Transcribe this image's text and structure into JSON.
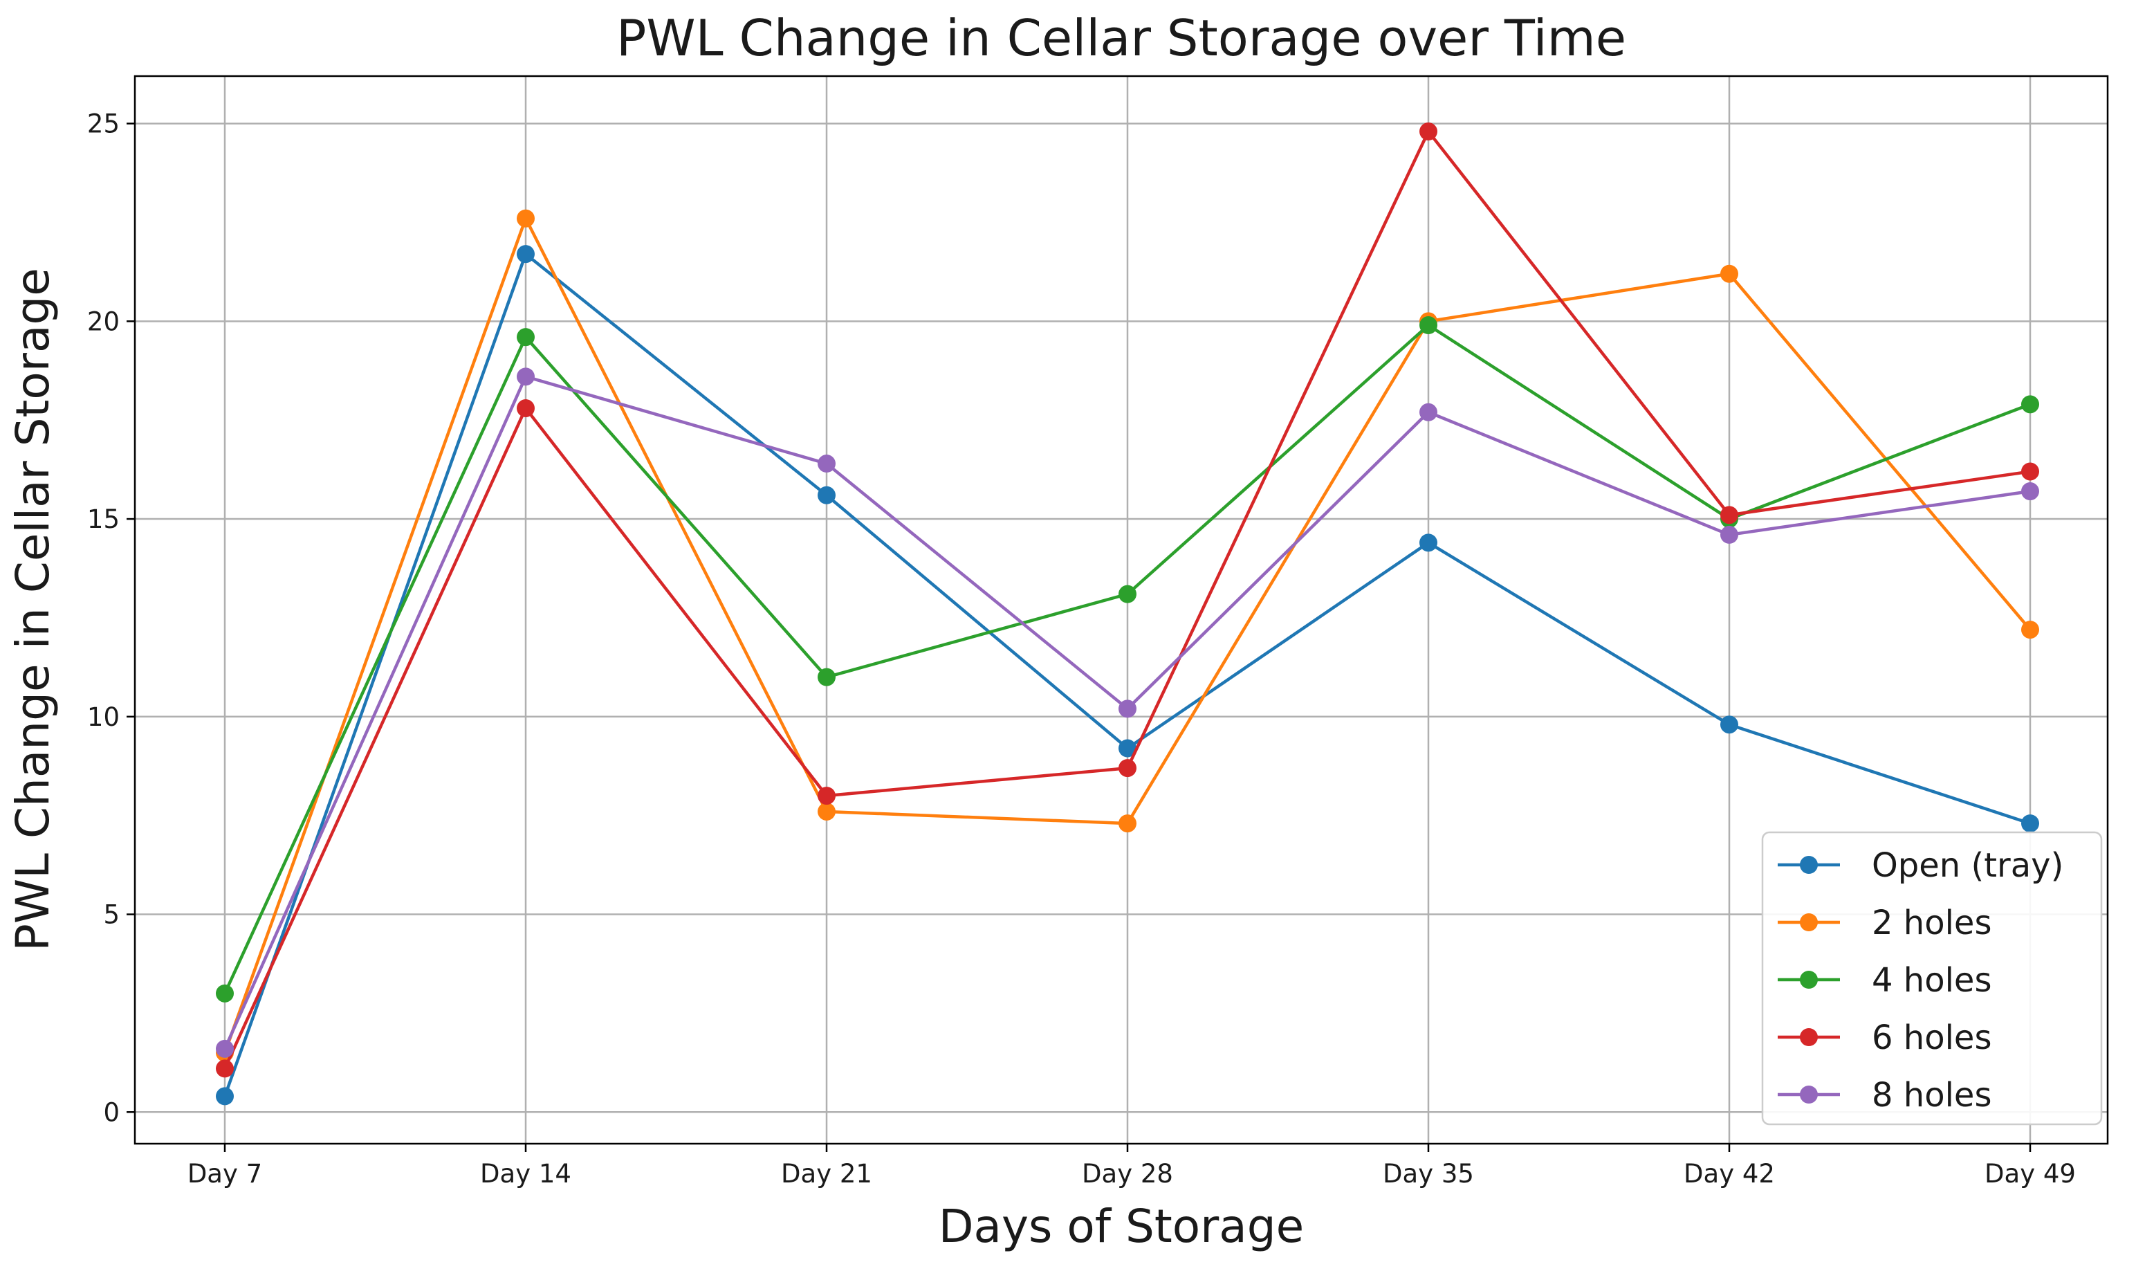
{
  "chart_data": {
    "type": "line",
    "title": "PWL Change in Cellar Storage over Time",
    "xlabel": "Days of Storage",
    "ylabel": "PWL Change in Cellar Storage",
    "categories": [
      "Day 7",
      "Day 14",
      "Day 21",
      "Day 28",
      "Day 35",
      "Day 42",
      "Day 49"
    ],
    "ylim": [
      -0.8,
      26.2
    ],
    "yticks": [
      0,
      5,
      10,
      15,
      20,
      25
    ],
    "grid": true,
    "legend_position": "lower-right",
    "series": [
      {
        "name": "Open (tray)",
        "color": "#1f77b4",
        "values": [
          0.4,
          21.7,
          15.6,
          9.2,
          14.4,
          9.8,
          7.3
        ]
      },
      {
        "name": "2 holes",
        "color": "#ff7f0e",
        "values": [
          1.5,
          22.6,
          7.6,
          7.3,
          20.0,
          21.2,
          12.2
        ]
      },
      {
        "name": "4 holes",
        "color": "#2ca02c",
        "values": [
          3.0,
          19.6,
          11.0,
          13.1,
          19.9,
          15.0,
          17.9
        ]
      },
      {
        "name": "6 holes",
        "color": "#d62728",
        "values": [
          1.1,
          17.8,
          8.0,
          8.7,
          24.8,
          15.1,
          16.2
        ]
      },
      {
        "name": "8 holes",
        "color": "#9467bd",
        "values": [
          1.6,
          18.6,
          16.4,
          10.2,
          17.7,
          14.6,
          15.7
        ]
      }
    ]
  }
}
